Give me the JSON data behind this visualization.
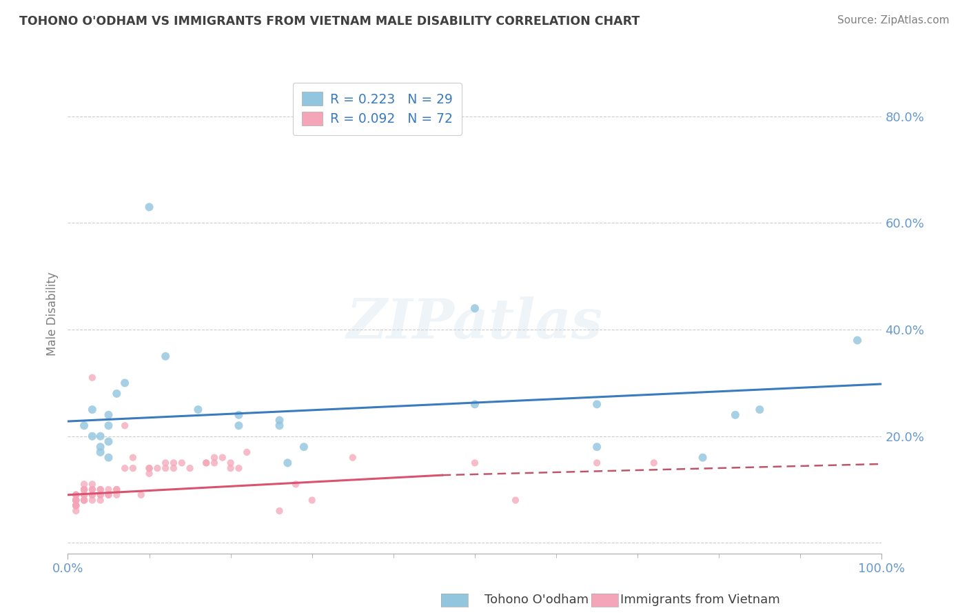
{
  "title": "TOHONO O'ODHAM VS IMMIGRANTS FROM VIETNAM MALE DISABILITY CORRELATION CHART",
  "source_text": "Source: ZipAtlas.com",
  "ylabel": "Male Disability",
  "watermark": "ZIPatlas",
  "blue_label": "Tohono O'odham",
  "pink_label": "Immigrants from Vietnam",
  "blue_R": 0.223,
  "blue_N": 29,
  "pink_R": 0.092,
  "pink_N": 72,
  "blue_color": "#92c5de",
  "pink_color": "#f4a6b8",
  "blue_line_color": "#3a7abf",
  "pink_line_color": "#d9536f",
  "pink_dash_color": "#c0556a",
  "xlim": [
    0,
    1
  ],
  "ylim": [
    -0.02,
    0.88
  ],
  "ytick_vals": [
    0.2,
    0.4,
    0.6,
    0.8
  ],
  "ytick_labels": [
    "20.0%",
    "40.0%",
    "60.0%",
    "80.0%"
  ],
  "xtick_vals": [
    0.0,
    1.0
  ],
  "xtick_labels": [
    "0.0%",
    "100.0%"
  ],
  "blue_x": [
    0.02,
    0.03,
    0.03,
    0.04,
    0.04,
    0.04,
    0.05,
    0.05,
    0.05,
    0.05,
    0.06,
    0.07,
    0.1,
    0.12,
    0.16,
    0.21,
    0.21,
    0.26,
    0.26,
    0.27,
    0.29,
    0.5,
    0.5,
    0.65,
    0.65,
    0.78,
    0.82,
    0.85,
    0.97
  ],
  "blue_y": [
    0.22,
    0.25,
    0.2,
    0.18,
    0.2,
    0.17,
    0.19,
    0.22,
    0.24,
    0.16,
    0.28,
    0.3,
    0.63,
    0.35,
    0.25,
    0.24,
    0.22,
    0.22,
    0.23,
    0.15,
    0.18,
    0.26,
    0.44,
    0.26,
    0.18,
    0.16,
    0.24,
    0.25,
    0.38
  ],
  "pink_x": [
    0.01,
    0.01,
    0.01,
    0.01,
    0.01,
    0.01,
    0.01,
    0.01,
    0.01,
    0.01,
    0.01,
    0.01,
    0.01,
    0.02,
    0.02,
    0.02,
    0.02,
    0.02,
    0.02,
    0.02,
    0.02,
    0.02,
    0.03,
    0.03,
    0.03,
    0.03,
    0.03,
    0.03,
    0.03,
    0.04,
    0.04,
    0.04,
    0.04,
    0.04,
    0.05,
    0.05,
    0.05,
    0.06,
    0.06,
    0.06,
    0.07,
    0.07,
    0.08,
    0.08,
    0.09,
    0.1,
    0.1,
    0.1,
    0.11,
    0.12,
    0.12,
    0.13,
    0.13,
    0.14,
    0.15,
    0.17,
    0.17,
    0.18,
    0.18,
    0.19,
    0.2,
    0.2,
    0.21,
    0.22,
    0.26,
    0.28,
    0.3,
    0.35,
    0.5,
    0.55,
    0.65,
    0.72
  ],
  "pink_y": [
    0.06,
    0.07,
    0.07,
    0.07,
    0.07,
    0.08,
    0.08,
    0.08,
    0.08,
    0.08,
    0.09,
    0.09,
    0.09,
    0.08,
    0.08,
    0.08,
    0.09,
    0.09,
    0.1,
    0.1,
    0.1,
    0.11,
    0.08,
    0.09,
    0.09,
    0.1,
    0.1,
    0.11,
    0.31,
    0.08,
    0.09,
    0.09,
    0.1,
    0.1,
    0.09,
    0.09,
    0.1,
    0.09,
    0.1,
    0.1,
    0.14,
    0.22,
    0.14,
    0.16,
    0.09,
    0.13,
    0.14,
    0.14,
    0.14,
    0.14,
    0.15,
    0.14,
    0.15,
    0.15,
    0.14,
    0.15,
    0.15,
    0.16,
    0.15,
    0.16,
    0.14,
    0.15,
    0.14,
    0.17,
    0.06,
    0.11,
    0.08,
    0.16,
    0.15,
    0.08,
    0.15,
    0.15
  ],
  "blue_trend": [
    0.0,
    1.0,
    0.228,
    0.298
  ],
  "pink_solid": [
    0.0,
    0.46,
    0.09,
    0.127
  ],
  "pink_dash": [
    0.46,
    1.0,
    0.127,
    0.148
  ],
  "bg_color": "#ffffff",
  "grid_color": "#cccccc",
  "title_color": "#404040",
  "axis_color": "#6699cc",
  "legend_text_color": "#3a7abf",
  "source_color": "#808080"
}
